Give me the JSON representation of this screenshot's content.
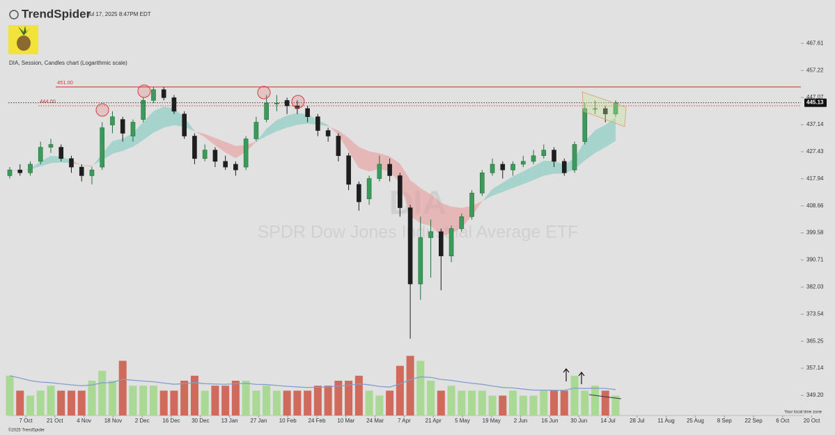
{
  "header": {
    "brand": "TrendSpider",
    "timestamp": "Jul 17, 2025 8:47PM EDT",
    "chart_label": "DIA, Session, Candles chart (Logarithmic scale)",
    "copyright": "©2025 TrendSpider",
    "timezone": "Your local time zone"
  },
  "chart_data": {
    "type": "candlestick",
    "symbol": "DIA",
    "name": "SPDR Dow Jones Industrial Average ETF",
    "log_scale": true,
    "ylim": [
      346,
      480
    ],
    "yticks": [
      467.61,
      457.22,
      447.07,
      437.14,
      427.43,
      417.94,
      408.66,
      399.58,
      390.71,
      382.03,
      373.54,
      365.25,
      357.14,
      {
        "value": 349.2,
        "label": "349.20"
      }
    ],
    "xlabels": [
      "7 Oct",
      "21 Oct",
      "4 Nov",
      "18 Nov",
      "2 Dec",
      "16 Dec",
      "30 Dec",
      "13 Jan",
      "27 Jan",
      "10 Feb",
      "24 Feb",
      "10 Mar",
      "24 Mar",
      "7 Apr",
      "21 Apr",
      "5 May",
      "19 May",
      "2 Jun",
      "16 Jun",
      "30 Jun",
      "14 Jul",
      "28 Jul",
      "11 Aug",
      "25 Aug",
      "8 Sep",
      "22 Sep",
      "6 Oct",
      "20 Oct"
    ],
    "up_color": "#1f6f3a",
    "down_color": "#1e1e1e",
    "vol_up_color": "#a9d994",
    "vol_down_color": "#cf6a5c",
    "levels": [
      {
        "value": 451,
        "label": "451.00",
        "color": "#d63b3b",
        "style": "solid"
      },
      {
        "value": 444,
        "label": "444.00",
        "color": "#d63b3b",
        "style": "dotted"
      }
    ],
    "last_price": {
      "value": 445.13,
      "label": "445.13"
    },
    "candles": [
      [
        419,
        422,
        418,
        421
      ],
      [
        421,
        423,
        419,
        420
      ],
      [
        420,
        424,
        419,
        423
      ],
      [
        424,
        431,
        423,
        429
      ],
      [
        429,
        432,
        427,
        430
      ],
      [
        429,
        430,
        424,
        425
      ],
      [
        425,
        426,
        420,
        422
      ],
      [
        422,
        423,
        417,
        419
      ],
      [
        419,
        422,
        416,
        421
      ],
      [
        422,
        438,
        421,
        436
      ],
      [
        437,
        442,
        434,
        440
      ],
      [
        439,
        440,
        431,
        434
      ],
      [
        433,
        439,
        431,
        438
      ],
      [
        439,
        447,
        438,
        446
      ],
      [
        446,
        451,
        445,
        450
      ],
      [
        450,
        451,
        446,
        447
      ],
      [
        447,
        448,
        441,
        442
      ],
      [
        441,
        442,
        432,
        433
      ],
      [
        433,
        434,
        423,
        425
      ],
      [
        425,
        430,
        424,
        428
      ],
      [
        428,
        429,
        422,
        424
      ],
      [
        424,
        426,
        421,
        422
      ],
      [
        423,
        424,
        419,
        421
      ],
      [
        422,
        433,
        421,
        432
      ],
      [
        432,
        440,
        431,
        438
      ],
      [
        439,
        448,
        438,
        445
      ],
      [
        445,
        448,
        442,
        445
      ],
      [
        446,
        447,
        441,
        444
      ],
      [
        444,
        446,
        441,
        443
      ],
      [
        443,
        444,
        438,
        440
      ],
      [
        440,
        441,
        433,
        435
      ],
      [
        435,
        436,
        431,
        433
      ],
      [
        433,
        434,
        424,
        426
      ],
      [
        426,
        427,
        414,
        416
      ],
      [
        416,
        417,
        407,
        410
      ],
      [
        411,
        419,
        409,
        418
      ],
      [
        418,
        426,
        417,
        423
      ],
      [
        423,
        425,
        417,
        419
      ],
      [
        419,
        420,
        405,
        408
      ],
      [
        408,
        409,
        366,
        383
      ],
      [
        383,
        405,
        378,
        398
      ],
      [
        398,
        404,
        385,
        400
      ],
      [
        400,
        401,
        381,
        392
      ],
      [
        392,
        402,
        390,
        401
      ],
      [
        401,
        406,
        400,
        405
      ],
      [
        405,
        414,
        404,
        413
      ],
      [
        413,
        421,
        412,
        420
      ],
      [
        420,
        425,
        419,
        423
      ],
      [
        423,
        424,
        418,
        421
      ],
      [
        421,
        424,
        419,
        423
      ],
      [
        423,
        426,
        422,
        424
      ],
      [
        424,
        428,
        423,
        426
      ],
      [
        426,
        430,
        425,
        428
      ],
      [
        428,
        429,
        422,
        424
      ],
      [
        424,
        425,
        419,
        420
      ],
      [
        421,
        431,
        420,
        430
      ],
      [
        431,
        445,
        430,
        443
      ],
      [
        443,
        446,
        441,
        443
      ],
      [
        443,
        444,
        438,
        441
      ],
      [
        441,
        446,
        440,
        445.13
      ]
    ],
    "volume": [
      8,
      5,
      4,
      5,
      6,
      5,
      5,
      5,
      7,
      9,
      7,
      11,
      6,
      6,
      6,
      5,
      5,
      7,
      8,
      5,
      6,
      6,
      7,
      7,
      5,
      6,
      5,
      5,
      5,
      5,
      6,
      6,
      7,
      7,
      8,
      5,
      4,
      5,
      10,
      12,
      11,
      7,
      5,
      6,
      5,
      5,
      5,
      4,
      4,
      5,
      4,
      4,
      5,
      5,
      5,
      8,
      5,
      6,
      5,
      4
    ],
    "volume_lim": [
      0,
      14
    ]
  }
}
